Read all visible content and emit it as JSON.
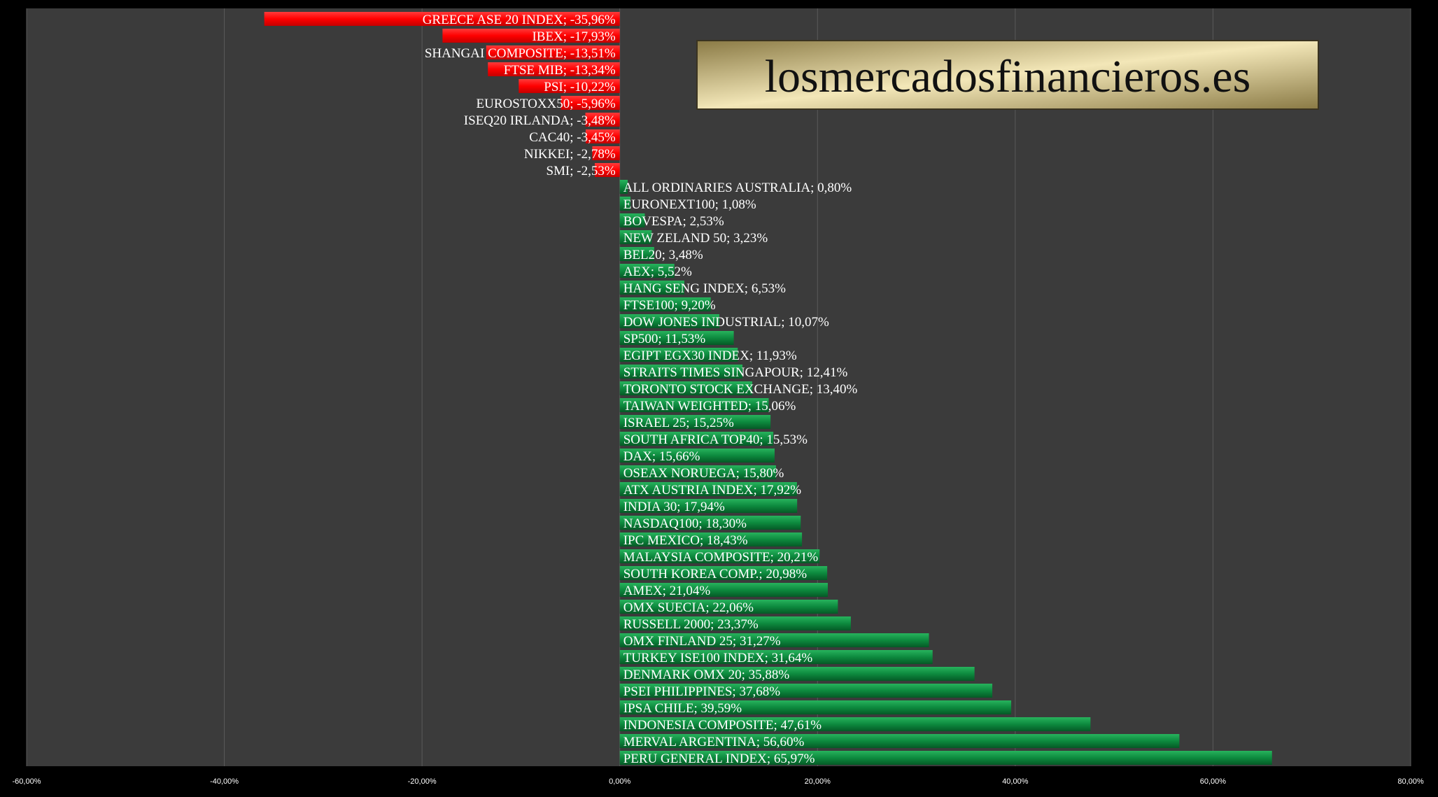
{
  "watermark": {
    "text": "losmercadosfinancieros.es"
  },
  "colors": {
    "background": "#000000",
    "plot_area": "#3b3b3b",
    "gridline": "#5a5a5a",
    "negative_bar": "#ff0000",
    "positive_bar": "#0d8a3e",
    "label_text": "#ffffff"
  },
  "chart_data": {
    "type": "bar",
    "orientation": "horizontal",
    "xlim": [
      -60,
      80
    ],
    "x_ticks": [
      -60,
      -40,
      -20,
      0,
      20,
      40,
      60,
      80
    ],
    "x_tick_labels": [
      "-60,00%",
      "-40,00%",
      "-20,00%",
      "0,00%",
      "20,00%",
      "40,00%",
      "60,00%",
      "80,00%"
    ],
    "grid": "vertical",
    "title": "",
    "xlabel": "",
    "ylabel": "",
    "bars": [
      {
        "label": "GREECE ASE 20 INDEX; -35,96%",
        "value": -35.96
      },
      {
        "label": "IBEX; -17,93%",
        "value": -17.93
      },
      {
        "label": "SHANGAI COMPOSITE; -13,51%",
        "value": -13.51
      },
      {
        "label": "FTSE MIB; -13,34%",
        "value": -13.34
      },
      {
        "label": "PSI; -10,22%",
        "value": -10.22
      },
      {
        "label": "EUROSTOXX50; -5,96%",
        "value": -5.96
      },
      {
        "label": "ISEQ20 IRLANDA; -3,48%",
        "value": -3.48
      },
      {
        "label": "CAC40; -3,45%",
        "value": -3.45
      },
      {
        "label": "NIKKEI; -2,78%",
        "value": -2.78
      },
      {
        "label": "SMI; -2,53%",
        "value": -2.53
      },
      {
        "label": "ALL ORDINARIES AUSTRALIA; 0,80%",
        "value": 0.8
      },
      {
        "label": "EURONEXT100; 1,08%",
        "value": 1.08
      },
      {
        "label": "BOVESPA; 2,53%",
        "value": 2.53
      },
      {
        "label": "NEW ZELAND 50; 3,23%",
        "value": 3.23
      },
      {
        "label": "BEL20; 3,48%",
        "value": 3.48
      },
      {
        "label": "AEX; 5,52%",
        "value": 5.52
      },
      {
        "label": "HANG SENG INDEX; 6,53%",
        "value": 6.53
      },
      {
        "label": "FTSE100; 9,20%",
        "value": 9.2
      },
      {
        "label": "DOW JONES INDUSTRIAL; 10,07%",
        "value": 10.07
      },
      {
        "label": "SP500; 11,53%",
        "value": 11.53
      },
      {
        "label": "EGIPT EGX30 INDEX; 11,93%",
        "value": 11.93
      },
      {
        "label": "STRAITS TIMES SINGAPOUR; 12,41%",
        "value": 12.41
      },
      {
        "label": "TORONTO STOCK EXCHANGE; 13,40%",
        "value": 13.4
      },
      {
        "label": "TAIWAN WEIGHTED; 15,06%",
        "value": 15.06
      },
      {
        "label": "ISRAEL 25; 15,25%",
        "value": 15.25
      },
      {
        "label": "SOUTH AFRICA TOP40; 15,53%",
        "value": 15.53
      },
      {
        "label": "DAX; 15,66%",
        "value": 15.66
      },
      {
        "label": "OSEAX NORUEGA; 15,80%",
        "value": 15.8
      },
      {
        "label": "ATX AUSTRIA INDEX; 17,92%",
        "value": 17.92
      },
      {
        "label": "INDIA 30; 17,94%",
        "value": 17.94
      },
      {
        "label": "NASDAQ100; 18,30%",
        "value": 18.3
      },
      {
        "label": "IPC MEXICO; 18,43%",
        "value": 18.43
      },
      {
        "label": "MALAYSIA COMPOSITE; 20,21%",
        "value": 20.21
      },
      {
        "label": "SOUTH KOREA COMP.; 20,98%",
        "value": 20.98
      },
      {
        "label": "AMEX; 21,04%",
        "value": 21.04
      },
      {
        "label": "OMX SUECIA; 22,06%",
        "value": 22.06
      },
      {
        "label": "RUSSELL 2000; 23,37%",
        "value": 23.37
      },
      {
        "label": "OMX FINLAND 25; 31,27%",
        "value": 31.27
      },
      {
        "label": "TURKEY ISE100 INDEX; 31,64%",
        "value": 31.64
      },
      {
        "label": "DENMARK OMX 20; 35,88%",
        "value": 35.88
      },
      {
        "label": "PSEI PHILIPPINES; 37,68%",
        "value": 37.68
      },
      {
        "label": "IPSA CHILE; 39,59%",
        "value": 39.59
      },
      {
        "label": "INDONESIA COMPOSITE; 47,61%",
        "value": 47.61
      },
      {
        "label": "MERVAL ARGENTINA; 56,60%",
        "value": 56.6
      },
      {
        "label": "PERU GENERAL INDEX; 65,97%",
        "value": 65.97
      }
    ]
  }
}
